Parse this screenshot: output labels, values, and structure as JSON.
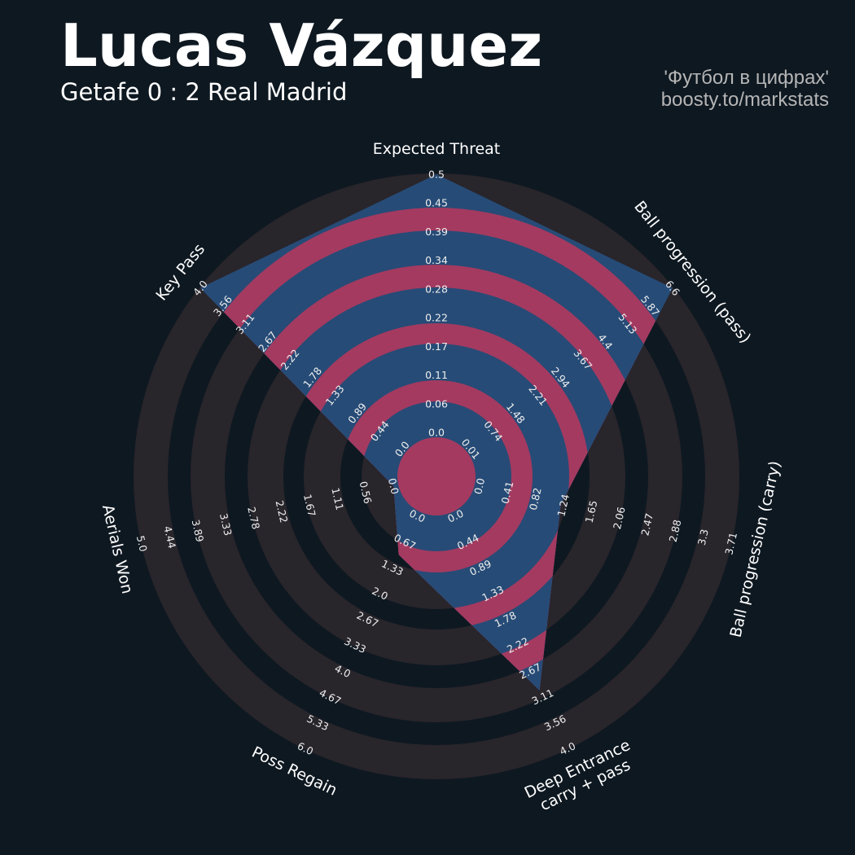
{
  "header": {
    "title": "Lucas Vázquez",
    "subtitle": "Getafe 0 : 2 Real Madrid",
    "credit_line1": "'Футбол в цифрах'",
    "credit_line2": "boosty.to/markstats"
  },
  "colors": {
    "background": "#0e1821",
    "ring_outer": "#28252b",
    "radar_fill": "#264b76",
    "radar_ring": "#a43a60",
    "text": "#ffffff"
  },
  "chart_data": {
    "type": "radar",
    "title": "",
    "grid": true,
    "params": [
      {
        "label": [
          "Expected Threat"
        ],
        "min": 0.0,
        "max": 0.5,
        "value": 0.5,
        "ticks": [
          "0.0",
          "0.06",
          "0.11",
          "0.17",
          "0.22",
          "0.28",
          "0.34",
          "0.39",
          "0.45",
          "0.5"
        ]
      },
      {
        "label": [
          "Ball progression (pass)"
        ],
        "min": 0.01,
        "max": 6.6,
        "value": 6.6,
        "ticks": [
          "0.01",
          "0.74",
          "1.48",
          "2.21",
          "2.94",
          "3.67",
          "4.4",
          "5.13",
          "5.87",
          "6.6"
        ]
      },
      {
        "label": [
          "Ball progression (carry)"
        ],
        "min": 0.0,
        "max": 3.71,
        "value": 1.2,
        "ticks": [
          "0.0",
          "0.41",
          "0.82",
          "1.24",
          "1.65",
          "2.06",
          "2.47",
          "2.88",
          "3.3",
          "3.71"
        ]
      },
      {
        "label": [
          "Deep Entrance",
          "carry + pass"
        ],
        "min": 0.0,
        "max": 4.0,
        "value": 3.0,
        "ticks": [
          "0.0",
          "0.44",
          "0.89",
          "1.33",
          "1.78",
          "2.22",
          "2.67",
          "3.11",
          "3.56",
          "4.0"
        ]
      },
      {
        "label": [
          "Poss Regain"
        ],
        "min": 0.0,
        "max": 6.0,
        "value": 1.0,
        "ticks": [
          "0.0",
          "0.67",
          "1.33",
          "2.0",
          "2.67",
          "3.33",
          "4.0",
          "4.67",
          "5.33",
          "6.0"
        ]
      },
      {
        "label": [
          "Aerials Won"
        ],
        "min": 0.0,
        "max": 5.0,
        "value": 0.0,
        "ticks": [
          "0.0",
          "0.56",
          "1.11",
          "1.67",
          "2.22",
          "2.78",
          "3.33",
          "3.89",
          "4.44",
          "5.0"
        ]
      },
      {
        "label": [
          "Key Pass"
        ],
        "min": 0.0,
        "max": 4.0,
        "value": 4.0,
        "ticks": [
          "0.0",
          "0.44",
          "0.89",
          "1.33",
          "1.78",
          "2.22",
          "2.67",
          "3.11",
          "3.56",
          "4.0"
        ]
      }
    ]
  }
}
